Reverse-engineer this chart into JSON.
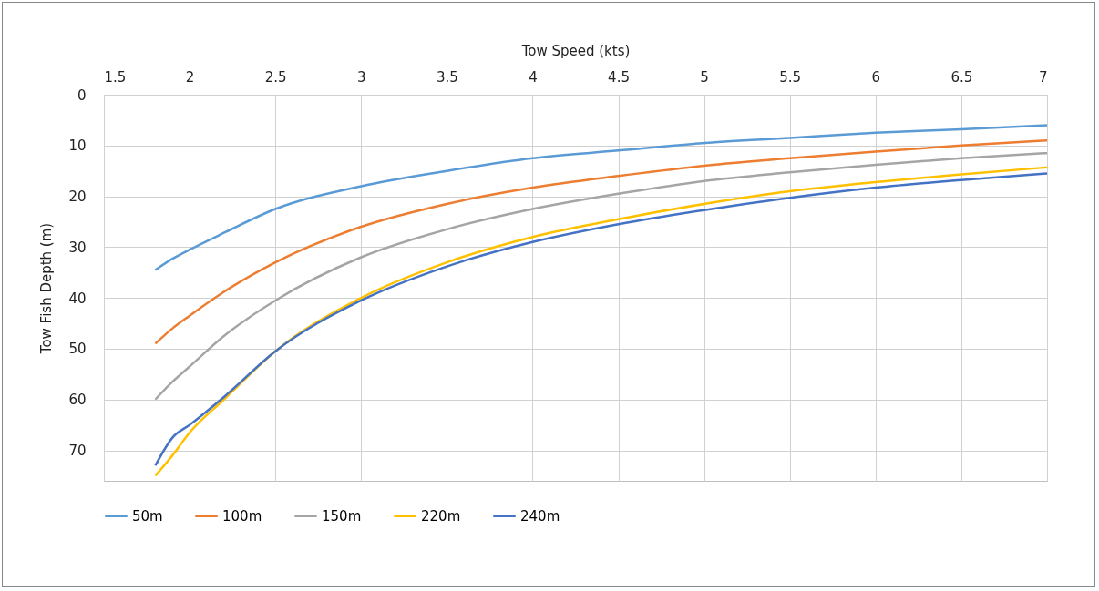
{
  "chart_data": {
    "type": "line",
    "xlabel": "Tow Speed (kts)",
    "ylabel": "Tow Fish Depth (m)",
    "xlim": [
      1.5,
      7
    ],
    "xticks": [
      1.5,
      2,
      2.5,
      3,
      3.5,
      4,
      4.5,
      5,
      5.5,
      6,
      6.5,
      7
    ],
    "ylim": [
      76,
      0
    ],
    "yticks": [
      0,
      10,
      20,
      30,
      40,
      50,
      60,
      70
    ],
    "grid": true,
    "legend": "bottom",
    "marker": "none",
    "line_style": "solid",
    "x": [
      1.8,
      1.9,
      2,
      2.2,
      2.5,
      3,
      3.5,
      4,
      4.5,
      5,
      5.5,
      6,
      6.5,
      7
    ],
    "series": [
      {
        "name": "50m",
        "color": "#5b9bd5",
        "values": [
          34.5,
          32.3,
          30.5,
          27.2,
          22.5,
          18,
          15,
          12.5,
          11,
          9.5,
          8.5,
          7.5,
          6.8,
          6
        ]
      },
      {
        "name": "100m",
        "color": "#ed7d31",
        "values": [
          49,
          46,
          43.5,
          38.8,
          33,
          26,
          21.5,
          18.3,
          16,
          14,
          12.5,
          11.2,
          10,
          9
        ]
      },
      {
        "name": "150m",
        "color": "#a5a5a5",
        "values": [
          60,
          56.5,
          53.5,
          47.5,
          40.5,
          32,
          26.5,
          22.5,
          19.5,
          17,
          15.3,
          13.8,
          12.5,
          11.5
        ]
      },
      {
        "name": "220m",
        "color": "#ffc000",
        "values": [
          75,
          71,
          66.5,
          60,
          50.5,
          40,
          33,
          28,
          24.5,
          21.5,
          19,
          17.2,
          15.7,
          14.3
        ]
      },
      {
        "name": "240m",
        "color": "#4472c4",
        "values": [
          73,
          67.5,
          65,
          59.5,
          50.5,
          40.5,
          33.8,
          29,
          25.5,
          22.7,
          20.3,
          18.3,
          16.8,
          15.5
        ]
      }
    ]
  }
}
